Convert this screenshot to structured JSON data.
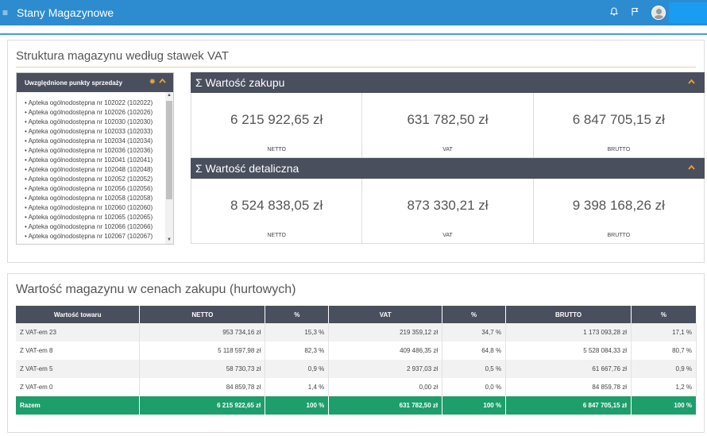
{
  "topbar": {
    "menu_glyph": "≡",
    "title": "Stany Magazynowe",
    "icons": [
      "bell-icon",
      "flag-icon",
      "user-avatar-icon"
    ]
  },
  "vat_structure": {
    "title": "Struktura magazynu według stawek VAT",
    "points_of_sale": {
      "header": "Uwzględnione punkty sprzedaży",
      "items": [
        "Apteka ogólnodostępna nr 102022 (102022)",
        "Apteka ogólnodostępna nr 102026 (102026)",
        "Apteka ogólnodostępna nr 102030 (102030)",
        "Apteka ogólnodostępna nr 102033 (102033)",
        "Apteka ogólnodostępna nr 102034 (102034)",
        "Apteka ogólnodostępna nr 102036 (102036)",
        "Apteka ogólnodostępna nr 102041 (102041)",
        "Apteka ogólnodostępna nr 102048 (102048)",
        "Apteka ogólnodostępna nr 102052 (102052)",
        "Apteka ogólnodostępna nr 102056 (102056)",
        "Apteka ogólnodostępna nr 102058 (102058)",
        "Apteka ogólnodostępna nr 102060 (102060)",
        "Apteka ogólnodostępna nr 102065 (102065)",
        "Apteka ogólnodostępna nr 102066 (102066)",
        "Apteka ogólnodostępna nr 102067 (102067)"
      ]
    },
    "purchase": {
      "title": "Σ Wartość zakupu",
      "netto": "6 215 922,65 zł",
      "vat": "631 782,50 zł",
      "brutto": "6 847 705,15 zł"
    },
    "retail": {
      "title": "Σ Wartość detaliczna",
      "netto": "8 524 838,05 zł",
      "vat": "873 330,21 zł",
      "brutto": "9 398 168,26 zł"
    },
    "labels": {
      "netto": "NETTO",
      "vat": "VAT",
      "brutto": "BRUTTO"
    }
  },
  "warehouse_value": {
    "title": "Wartość magazynu w cenach zakupu (hurtowych)",
    "columns": [
      "Wartość towaru",
      "NETTO",
      "%",
      "VAT",
      "%",
      "BRUTTO",
      "%"
    ],
    "rows": [
      [
        "Z VAT-em 23",
        "953 734,16 zł",
        "15,3 %",
        "219 359,12 zł",
        "34,7 %",
        "1 173 093,28 zł",
        "17,1 %"
      ],
      [
        "Z VAT-em 8",
        "5 118 597,98 zł",
        "82,3 %",
        "409 486,35 zł",
        "64,8 %",
        "5 528 084,33 zł",
        "80,7 %"
      ],
      [
        "Z VAT-em 5",
        "58 730,73 zł",
        "0,9 %",
        "2 937,03 zł",
        "0,5 %",
        "61 667,76 zł",
        "0,9 %"
      ],
      [
        "Z VAT-em 0",
        "84 859,78 zł",
        "1,4 %",
        "0,00 zł",
        "0,0 %",
        "84 859,78 zł",
        "1,2 %"
      ]
    ],
    "total": [
      "Razem",
      "6 215 922,65 zł",
      "100 %",
      "631 782,50 zł",
      "100 %",
      "6 847 705,15 zł",
      "100 %"
    ]
  },
  "colors": {
    "topbar": "#2d8ccf",
    "header_dark": "#4a4f5e",
    "accent_orange": "#f0a030",
    "total_green": "#1e9e6b"
  }
}
